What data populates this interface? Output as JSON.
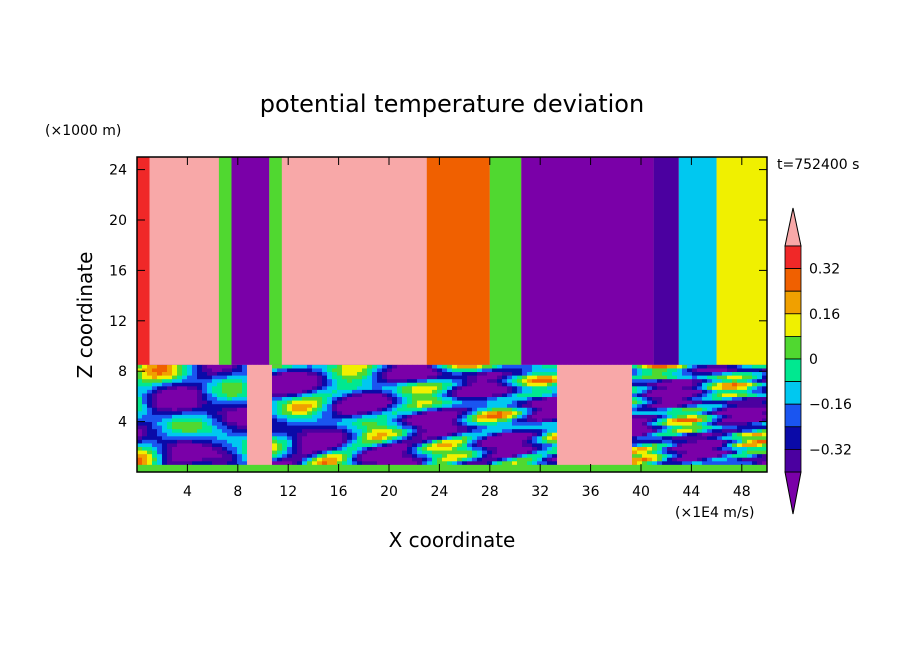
{
  "chart_data": {
    "type": "heatmap",
    "title": "potential temperature deviation",
    "xlabel": "X coordinate",
    "ylabel": "Z coordinate",
    "x_unit": "(×1E4 m/s)",
    "y_unit": "(×1000 m)",
    "time_label": "t=752400 s",
    "xlim": [
      0,
      50
    ],
    "ylim": [
      0,
      25
    ],
    "x_ticks": [
      4,
      8,
      12,
      16,
      20,
      24,
      28,
      32,
      36,
      40,
      44,
      48
    ],
    "y_ticks": [
      4,
      8,
      12,
      16,
      20,
      24
    ],
    "colorbar": {
      "levels": [
        -0.48,
        -0.4,
        -0.32,
        -0.24,
        -0.16,
        -0.08,
        0,
        0.08,
        0.16,
        0.24,
        0.32,
        0.4
      ],
      "labels": [
        "0.32",
        "0.16",
        "0",
        "−0.16",
        "−0.32"
      ],
      "label_values": [
        0.32,
        0.16,
        0,
        -0.16,
        -0.32
      ],
      "colors": [
        "#7a00a8",
        "#4b00a0",
        "#0a0aa8",
        "#1a55f0",
        "#00c8f0",
        "#00e890",
        "#50d830",
        "#f0f000",
        "#f0a000",
        "#f06000",
        "#f02828",
        "#f8a8a8"
      ],
      "extend": "both"
    },
    "upper_layer_columns": [
      {
        "x": [
          0,
          1
        ],
        "value": 0.36
      },
      {
        "x": [
          1,
          6
        ],
        "value": 0.44
      },
      {
        "x": [
          6.5,
          7.5
        ],
        "value": 0.0
      },
      {
        "x": [
          7.5,
          10.5
        ],
        "value": -0.45
      },
      {
        "x": [
          10.5,
          11.5
        ],
        "value": 0.04
      },
      {
        "x": [
          11.5,
          23
        ],
        "value": 0.44
      },
      {
        "x": [
          23,
          28
        ],
        "value": 0.28
      },
      {
        "x": [
          28,
          30.5
        ],
        "value": 0.0
      },
      {
        "x": [
          30.5,
          41
        ],
        "value": -0.45
      },
      {
        "x": [
          41,
          43
        ],
        "value": -0.36
      },
      {
        "x": [
          43,
          46
        ],
        "value": -0.12
      },
      {
        "x": [
          46,
          50
        ],
        "value": 0.12
      }
    ],
    "inversion_height": 8.5
  }
}
